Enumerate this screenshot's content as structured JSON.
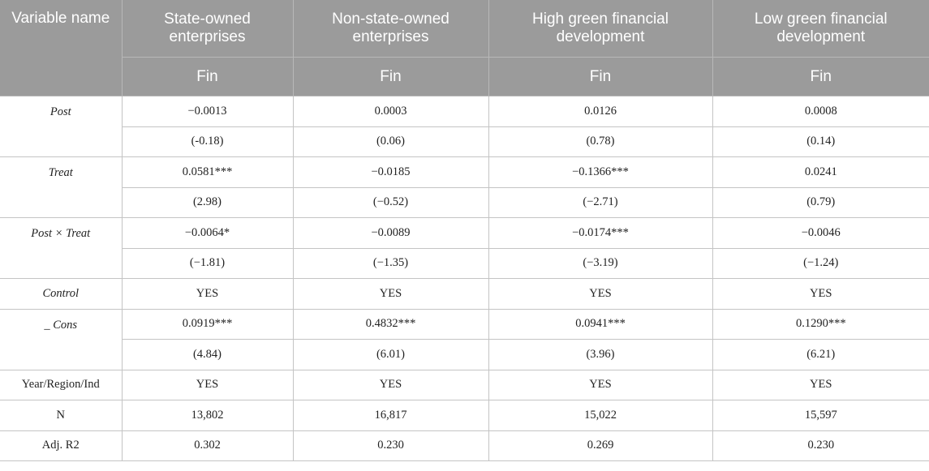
{
  "header": {
    "col0": "Variable name",
    "col1": "State-owned enterprises",
    "col2": "Non-state-owned enterprises",
    "col3": "High green financial development",
    "col4": "Low green financial development",
    "sub1": "Fin",
    "sub2": "Fin",
    "sub3": "Fin",
    "sub4": "Fin"
  },
  "rows": {
    "post": {
      "name": "Post",
      "coef": [
        "−0.0013",
        "0.0003",
        "0.0126",
        "0.0008"
      ],
      "t": [
        "(-0.18)",
        "(0.06)",
        "(0.78)",
        "(0.14)"
      ]
    },
    "treat": {
      "name": "Treat",
      "coef": [
        "0.0581***",
        "−0.0185",
        "−0.1366***",
        "0.0241"
      ],
      "t": [
        "(2.98)",
        "(−0.52)",
        "(−2.71)",
        "(0.79)"
      ]
    },
    "posttreat": {
      "name": "Post × Treat",
      "coef": [
        "−0.0064*",
        "−0.0089",
        "−0.0174***",
        "−0.0046"
      ],
      "t": [
        "(−1.81)",
        "(−1.35)",
        "(−3.19)",
        "(−1.24)"
      ]
    },
    "control": {
      "name": "Control",
      "vals": [
        "YES",
        "YES",
        "YES",
        "YES"
      ]
    },
    "cons": {
      "name": "_ Cons",
      "coef": [
        "0.0919***",
        "0.4832***",
        "0.0941***",
        "0.1290***"
      ],
      "t": [
        "(4.84)",
        "(6.01)",
        "(3.96)",
        "(6.21)"
      ]
    },
    "fe": {
      "name": "Year/Region/Ind",
      "vals": [
        "YES",
        "YES",
        "YES",
        "YES"
      ]
    },
    "n": {
      "name": "N",
      "vals": [
        "13,802",
        "16,817",
        "15,022",
        "15,597"
      ]
    },
    "r2": {
      "name": "Adj. R2",
      "vals": [
        "0.302",
        "0.230",
        "0.269",
        "0.230"
      ]
    }
  }
}
